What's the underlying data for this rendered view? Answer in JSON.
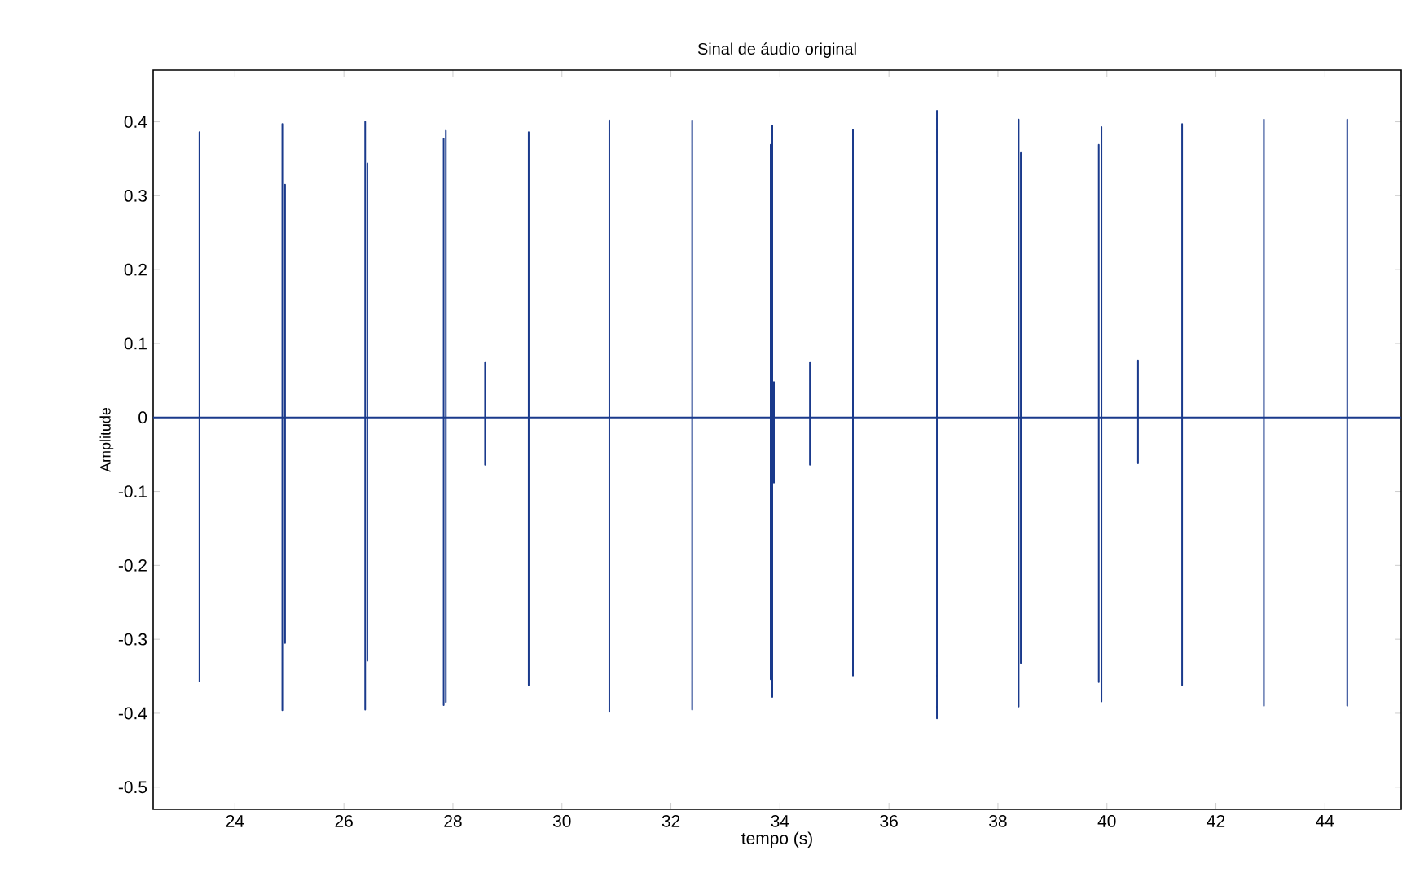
{
  "chart_data": {
    "type": "line",
    "title": "Sinal de áudio original",
    "xlabel": "tempo (s)",
    "ylabel": "Amplitude",
    "x": [
      22.5,
      23.35,
      23.35,
      23.35,
      23.35,
      24.87,
      24.87,
      24.87,
      24.87,
      24.92,
      24.92,
      24.92,
      24.92,
      26.39,
      26.39,
      26.39,
      26.39,
      26.43,
      26.43,
      26.43,
      26.43,
      27.83,
      27.83,
      27.83,
      27.83,
      27.87,
      27.87,
      27.87,
      27.87,
      28.59,
      28.59,
      28.59,
      28.59,
      29.39,
      29.39,
      29.39,
      29.39,
      30.87,
      30.87,
      30.87,
      30.87,
      32.39,
      32.39,
      32.39,
      32.39,
      33.83,
      33.83,
      33.83,
      33.83,
      33.86,
      33.86,
      33.86,
      33.86,
      33.89,
      33.89,
      33.89,
      33.89,
      34.55,
      34.55,
      34.55,
      34.55,
      35.34,
      35.34,
      35.34,
      35.34,
      36.88,
      36.88,
      36.88,
      36.88,
      38.38,
      38.38,
      38.38,
      38.38,
      38.42,
      38.42,
      38.42,
      38.42,
      39.85,
      39.85,
      39.85,
      39.85,
      39.9,
      39.9,
      39.9,
      39.9,
      40.57,
      40.57,
      40.57,
      40.57,
      41.38,
      41.38,
      41.38,
      41.38,
      42.88,
      42.88,
      42.88,
      42.88,
      44.41,
      44.41,
      44.41,
      44.41,
      45.4
    ],
    "values": [
      0,
      0,
      0.386,
      -0.357,
      0,
      0,
      0.397,
      -0.396,
      0,
      0,
      0.315,
      -0.305,
      0,
      0,
      0.4,
      -0.395,
      0,
      0,
      0.344,
      -0.329,
      0,
      0,
      0.377,
      -0.389,
      0,
      0,
      0.388,
      -0.385,
      0,
      0,
      0.075,
      -0.064,
      0,
      0,
      0.386,
      -0.362,
      0,
      0,
      0.402,
      -0.398,
      0,
      0,
      0.402,
      -0.395,
      0,
      0,
      0.369,
      -0.354,
      0,
      0,
      0.395,
      -0.378,
      0,
      0,
      0.048,
      -0.088,
      0,
      0,
      0.075,
      -0.064,
      0,
      0,
      0.389,
      -0.349,
      0,
      0,
      0.415,
      -0.407,
      0,
      0,
      0.403,
      -0.391,
      0,
      0,
      0.358,
      -0.332,
      0,
      0,
      0.369,
      -0.358,
      0,
      0,
      0.393,
      -0.384,
      0,
      0,
      0.077,
      -0.062,
      0,
      0,
      0.397,
      -0.362,
      0,
      0,
      0.403,
      -0.39,
      0,
      0,
      0.403,
      -0.39,
      0,
      0
    ],
    "color": "#1a3a8c",
    "xlim": [
      22.5,
      45.4
    ],
    "ylim": [
      -0.53,
      0.47
    ],
    "xticks": [
      24,
      26,
      28,
      30,
      32,
      34,
      36,
      38,
      40,
      42,
      44
    ],
    "yticks": [
      -0.5,
      -0.4,
      -0.3,
      -0.2,
      -0.1,
      0,
      0.1,
      0.2,
      0.3,
      0.4
    ],
    "grid": false,
    "marker": "none",
    "line_style": "solid"
  }
}
